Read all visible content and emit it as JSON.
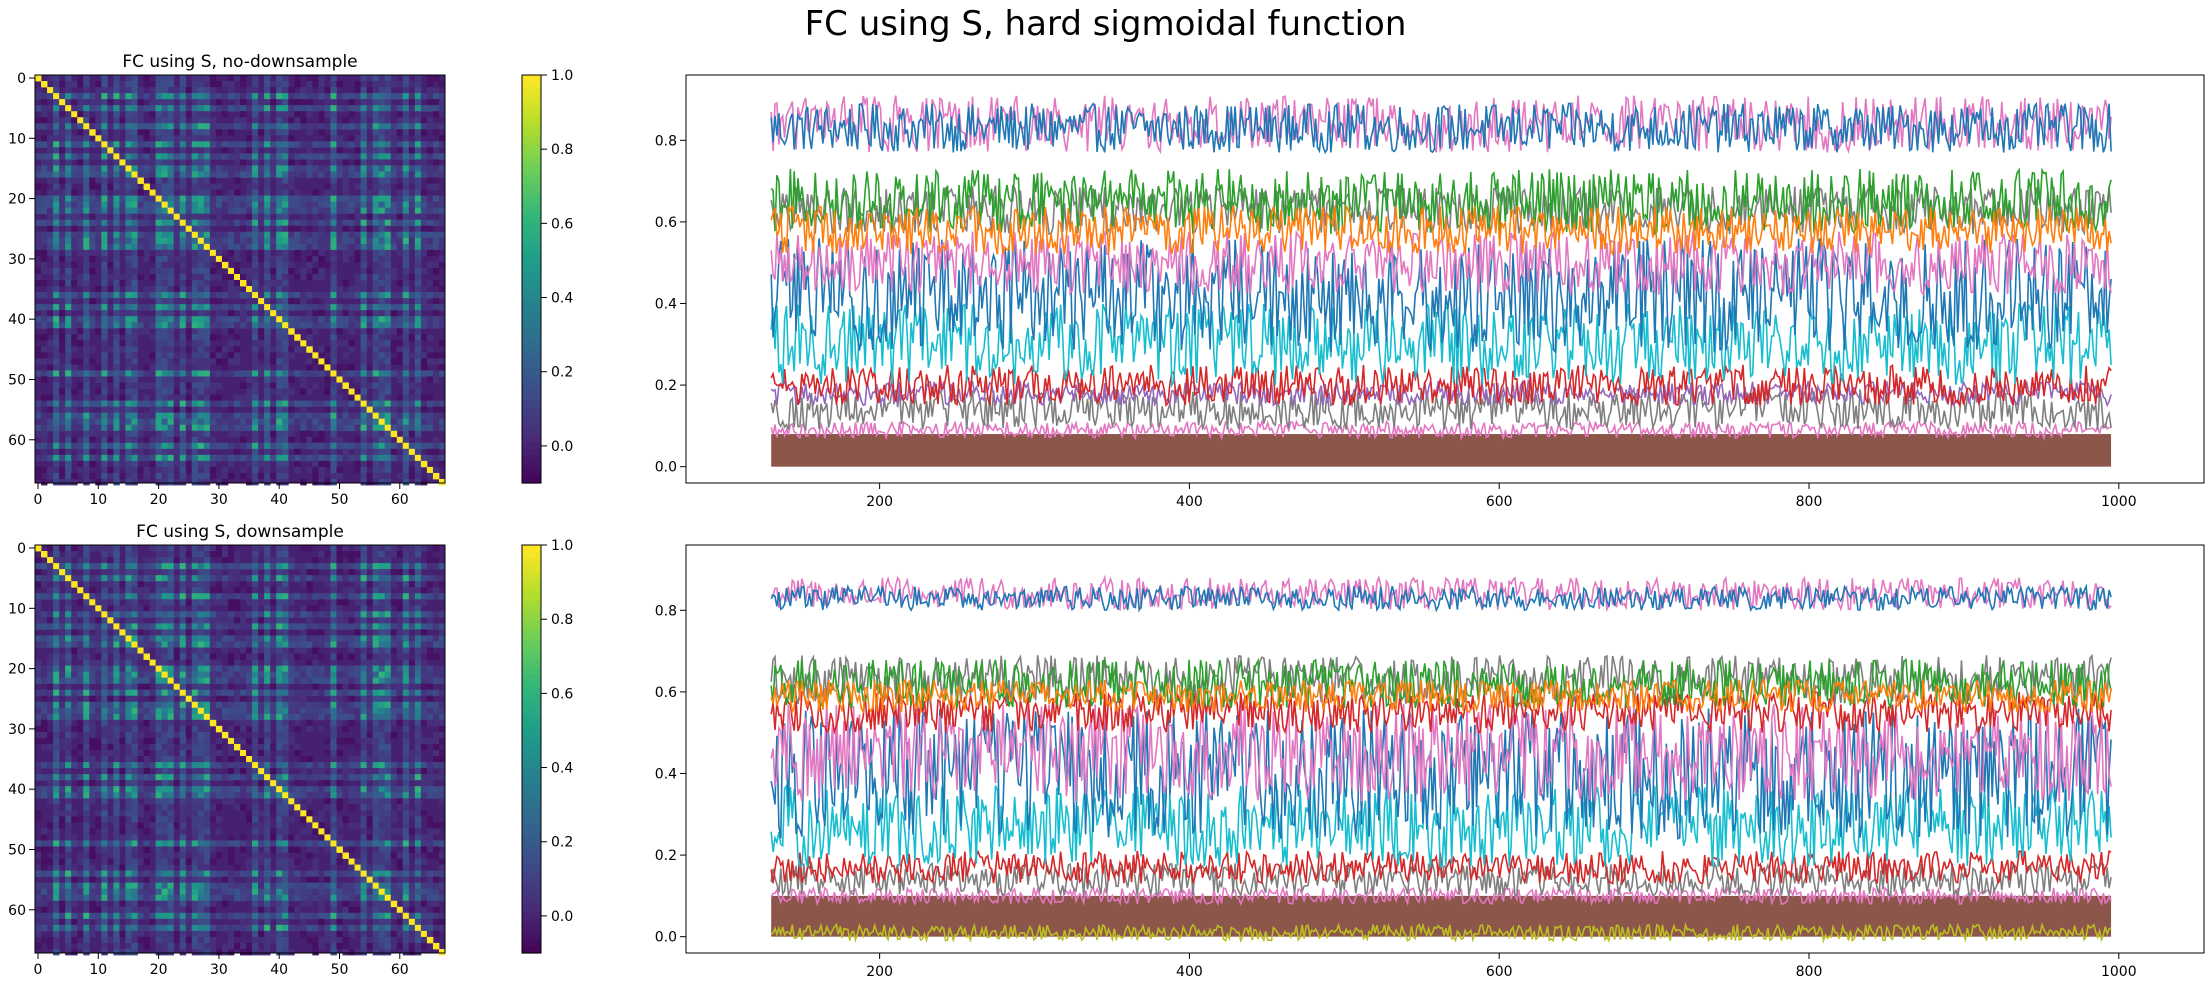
{
  "figure": {
    "suptitle": "FC using S, hard sigmoidal function"
  },
  "chart_data": [
    {
      "type": "heatmap",
      "title": "FC using S, no-downsample",
      "matrix_size": 68,
      "diagonal_value": 1.0,
      "value_range": [
        -0.1,
        1.0
      ],
      "background_value": 0.0,
      "highlight_indices": [
        3,
        5,
        8,
        11,
        13,
        15,
        16,
        20,
        21,
        22,
        24,
        26,
        27,
        28,
        36,
        38,
        40,
        41,
        49,
        54,
        56,
        57,
        58,
        61,
        63
      ],
      "x_ticks": [
        0,
        10,
        20,
        30,
        40,
        50,
        60
      ],
      "y_ticks": [
        0,
        10,
        20,
        30,
        40,
        50,
        60
      ],
      "colorbar": {
        "ticks": [
          0.0,
          0.2,
          0.4,
          0.6,
          0.8,
          1.0
        ],
        "tick_labels": [
          "0.0",
          "0.2",
          "0.4",
          "0.6",
          "0.8",
          "1.0"
        ],
        "colormap": "viridis"
      }
    },
    {
      "type": "line",
      "title": "",
      "x_range": [
        130,
        995
      ],
      "xlim": [
        75,
        1055
      ],
      "ylim": [
        -0.04,
        0.96
      ],
      "x_ticks": [
        200,
        400,
        600,
        800,
        1000
      ],
      "y_ticks": [
        0.0,
        0.2,
        0.4,
        0.6,
        0.8
      ],
      "y_tick_labels": [
        "0.0",
        "0.2",
        "0.4",
        "0.6",
        "0.8"
      ],
      "series": [
        {
          "color": "#8c564b",
          "center": 0.04,
          "amplitude": 0.04,
          "fill_band": true
        },
        {
          "color": "#e377c2",
          "center": 0.09,
          "amplitude": 0.02
        },
        {
          "color": "#7f7f7f",
          "center": 0.14,
          "amplitude": 0.05
        },
        {
          "color": "#9467bd",
          "center": 0.18,
          "amplitude": 0.03
        },
        {
          "color": "#d62728",
          "center": 0.2,
          "amplitude": 0.05
        },
        {
          "color": "#17becf",
          "center": 0.3,
          "amplitude": 0.1
        },
        {
          "color": "#1f77b4",
          "center": 0.42,
          "amplitude": 0.14
        },
        {
          "color": "#e377c2",
          "center": 0.5,
          "amplitude": 0.08
        },
        {
          "color": "#7f7f7f",
          "center": 0.63,
          "amplitude": 0.06
        },
        {
          "color": "#2ca02c",
          "center": 0.65,
          "amplitude": 0.08
        },
        {
          "color": "#ff7f0e",
          "center": 0.58,
          "amplitude": 0.06
        },
        {
          "color": "#e377c2",
          "center": 0.84,
          "amplitude": 0.07
        },
        {
          "color": "#1f77b4",
          "center": 0.83,
          "amplitude": 0.06
        }
      ]
    },
    {
      "type": "heatmap",
      "title": "FC using S, downsample",
      "matrix_size": 68,
      "diagonal_value": 1.0,
      "value_range": [
        -0.1,
        1.0
      ],
      "background_value": 0.0,
      "highlight_indices": [
        3,
        5,
        8,
        11,
        13,
        15,
        16,
        20,
        21,
        22,
        24,
        26,
        27,
        28,
        36,
        38,
        40,
        41,
        49,
        54,
        56,
        57,
        58,
        61,
        63
      ],
      "x_ticks": [
        0,
        10,
        20,
        30,
        40,
        50,
        60
      ],
      "y_ticks": [
        0,
        10,
        20,
        30,
        40,
        50,
        60
      ],
      "colorbar": {
        "ticks": [
          0.0,
          0.2,
          0.4,
          0.6,
          0.8,
          1.0
        ],
        "tick_labels": [
          "0.0",
          "0.2",
          "0.4",
          "0.6",
          "0.8",
          "1.0"
        ],
        "colormap": "viridis"
      }
    },
    {
      "type": "line",
      "title": "",
      "x_range": [
        130,
        995
      ],
      "xlim": [
        75,
        1055
      ],
      "ylim": [
        -0.04,
        0.96
      ],
      "x_ticks": [
        200,
        400,
        600,
        800,
        1000
      ],
      "y_ticks": [
        0.0,
        0.2,
        0.4,
        0.6,
        0.8
      ],
      "y_tick_labels": [
        "0.0",
        "0.2",
        "0.4",
        "0.6",
        "0.8"
      ],
      "series": [
        {
          "color": "#8c564b",
          "center": 0.05,
          "amplitude": 0.05,
          "fill_band": true
        },
        {
          "color": "#bcbd22",
          "center": 0.01,
          "amplitude": 0.02
        },
        {
          "color": "#e377c2",
          "center": 0.1,
          "amplitude": 0.02
        },
        {
          "color": "#7f7f7f",
          "center": 0.14,
          "amplitude": 0.04
        },
        {
          "color": "#d62728",
          "center": 0.17,
          "amplitude": 0.04
        },
        {
          "color": "#17becf",
          "center": 0.27,
          "amplitude": 0.1
        },
        {
          "color": "#1f77b4",
          "center": 0.4,
          "amplitude": 0.16
        },
        {
          "color": "#e377c2",
          "center": 0.45,
          "amplitude": 0.12
        },
        {
          "color": "#d62728",
          "center": 0.55,
          "amplitude": 0.05
        },
        {
          "color": "#7f7f7f",
          "center": 0.63,
          "amplitude": 0.06
        },
        {
          "color": "#2ca02c",
          "center": 0.62,
          "amplitude": 0.06
        },
        {
          "color": "#ff7f0e",
          "center": 0.59,
          "amplitude": 0.04
        },
        {
          "color": "#e377c2",
          "center": 0.84,
          "amplitude": 0.04
        },
        {
          "color": "#1f77b4",
          "center": 0.83,
          "amplitude": 0.03
        }
      ]
    }
  ]
}
